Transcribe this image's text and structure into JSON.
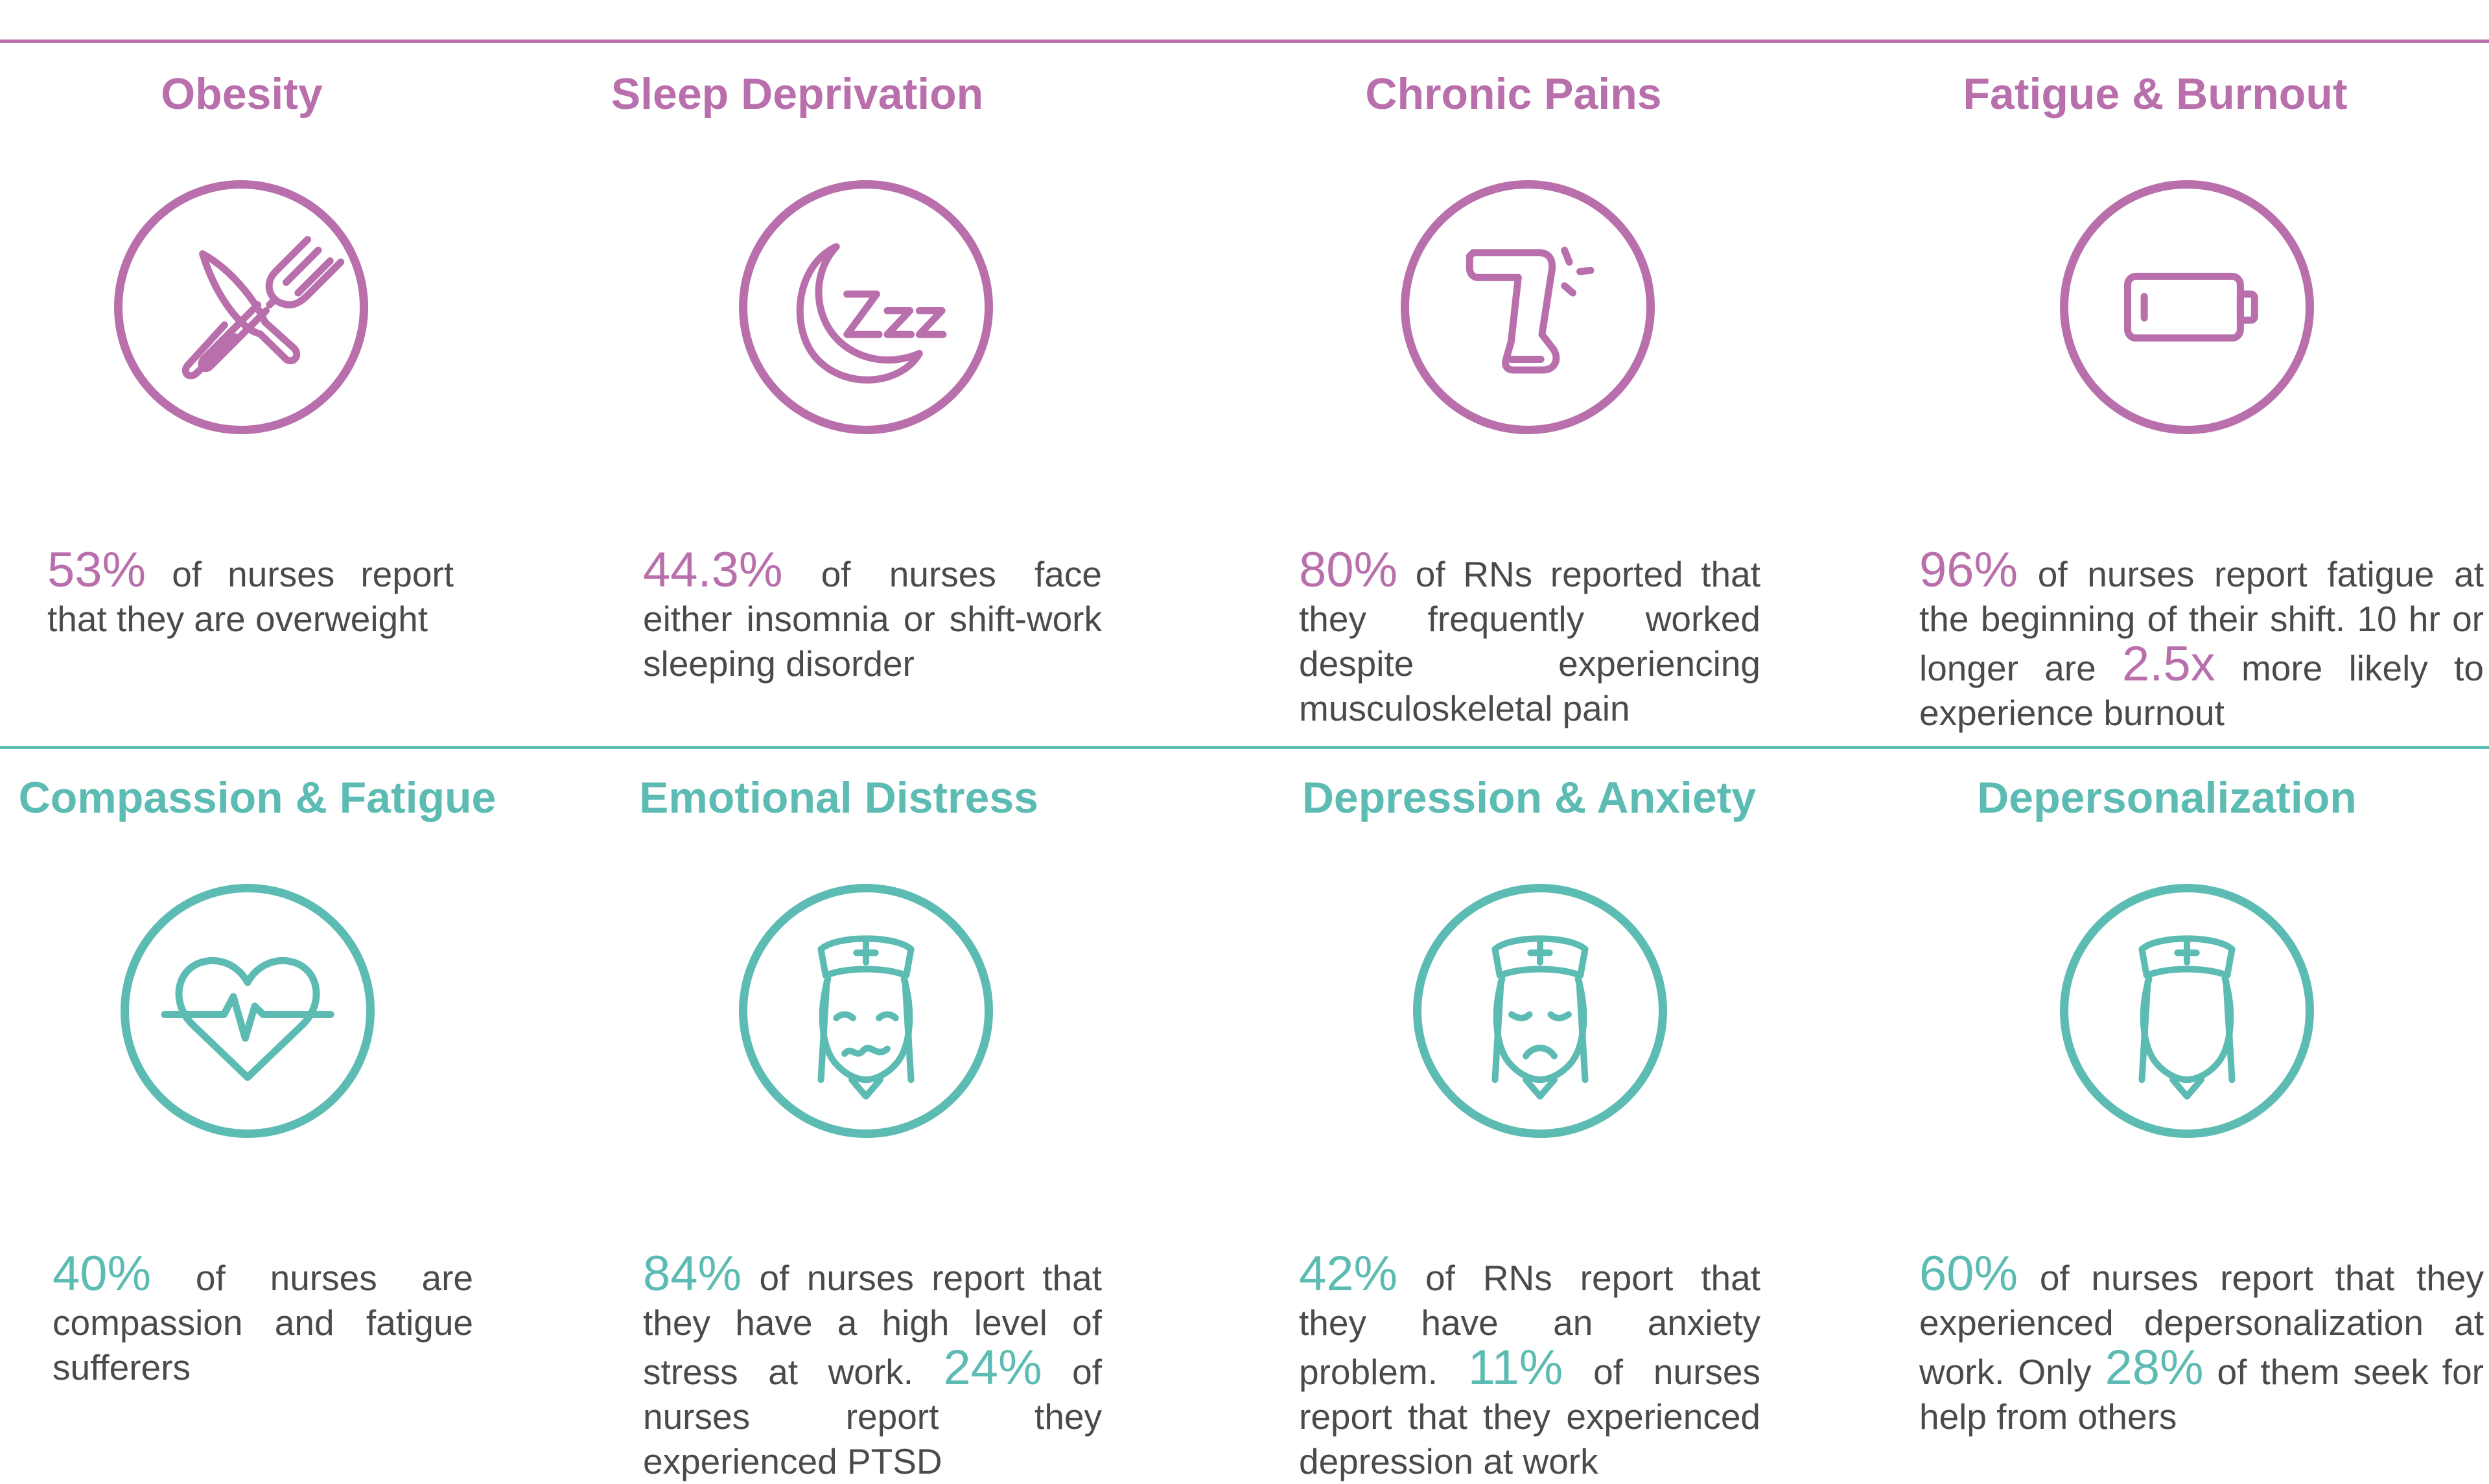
{
  "colors": {
    "health_accent": "#b86fab",
    "mental_accent": "#5cbbb2",
    "body_text": "#4a4a4a"
  },
  "health_row": [
    {
      "title": "Obesity",
      "icon": "utensils-icon",
      "text": [
        {
          "stat": "53%"
        },
        {
          "text": " of nurses report that they are overweight"
        }
      ]
    },
    {
      "title": "Sleep Deprivation",
      "icon": "moon-zzz-icon",
      "text": [
        {
          "stat": "44.3%"
        },
        {
          "text": " of nurses face either insomnia or shift-work sleeping disorder"
        }
      ]
    },
    {
      "title": "Chronic Pains",
      "icon": "leg-pain-icon",
      "text": [
        {
          "stat": "80%"
        },
        {
          "text": " of RNs reported that they frequently worked despite experiencing musculoskeletal pain"
        }
      ]
    },
    {
      "title": "Fatigue & Burnout",
      "icon": "low-battery-icon",
      "text": [
        {
          "stat": "96%"
        },
        {
          "text": " of nurses report fatigue at the beginning of their shift. 10 hr or longer are "
        },
        {
          "stat": "2.5x"
        },
        {
          "text": " more likely to experience burnout"
        }
      ]
    }
  ],
  "mental_row": [
    {
      "title": "Compassion & Fatigue",
      "icon": "heart-pulse-icon",
      "text": [
        {
          "stat": "40%"
        },
        {
          "text": " of nurses are compassion and fatigue sufferers"
        }
      ]
    },
    {
      "title": "Emotional Distress",
      "icon": "nurse-distressed-icon",
      "text": [
        {
          "stat": "84%"
        },
        {
          "text": " of nurses report that they have a high level of stress at work. "
        },
        {
          "stat": "24%"
        },
        {
          "text": " of nurses report they experienced PTSD"
        }
      ]
    },
    {
      "title": "Depression & Anxiety",
      "icon": "nurse-sad-icon",
      "text": [
        {
          "stat": "42%"
        },
        {
          "text": " of RNs report that they have an anxiety problem. "
        },
        {
          "stat": "11%"
        },
        {
          "text": " of nurses report that they experienced depression at work"
        }
      ]
    },
    {
      "title": "Depersonalization",
      "icon": "nurse-blank-icon",
      "text": [
        {
          "stat": "60%"
        },
        {
          "text": " of nurses report that they experienced depersonalization at work. Only "
        },
        {
          "stat": "28%"
        },
        {
          "text": " of them seek for help from others"
        }
      ]
    }
  ]
}
